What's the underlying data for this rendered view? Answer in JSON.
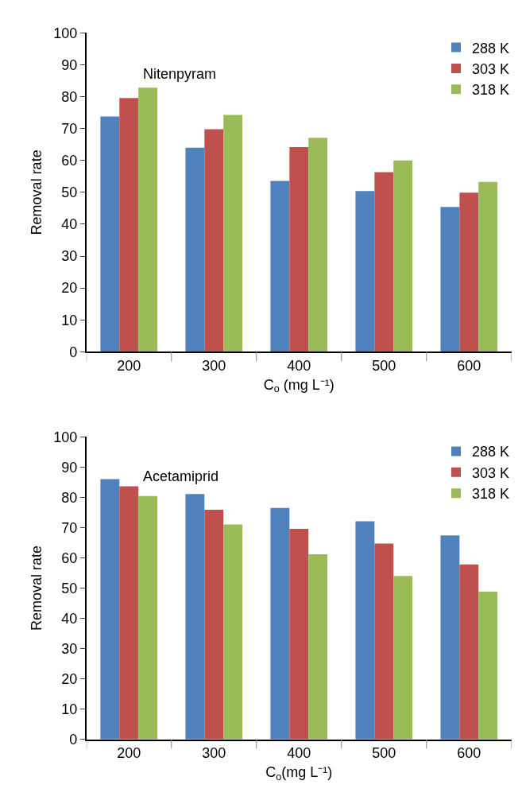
{
  "chart_data": [
    {
      "type": "bar",
      "categories": [
        "200",
        "300",
        "400",
        "500",
        "600"
      ],
      "xlabel": "C$_{o}$ (mg L⁻¹)",
      "ylabel": "Removal rate",
      "annotations": [
        "Nitenpyram"
      ],
      "ylim": [
        0,
        100
      ],
      "yticks": [
        0,
        10,
        20,
        30,
        40,
        50,
        60,
        70,
        80,
        90,
        100
      ],
      "grid": false,
      "legend": "top right",
      "series": [
        {
          "name": "288 K",
          "color": "#4f81bd",
          "values": [
            73.8,
            64,
            53.6,
            50.4,
            45.4
          ]
        },
        {
          "name": "303 K",
          "color": "#c0504d",
          "values": [
            79.6,
            69.8,
            64.2,
            56.3,
            49.9
          ]
        },
        {
          "name": "318 K",
          "color": "#9bbb59",
          "values": [
            82.8,
            74.3,
            67.1,
            60,
            53.3
          ]
        }
      ]
    },
    {
      "type": "bar",
      "categories": [
        "200",
        "300",
        "400",
        "500",
        "600"
      ],
      "xlabel": "C$_{o}$(mg L⁻¹)",
      "ylabel": "Removal rate",
      "annotations": [
        "Acetamiprid"
      ],
      "ylim": [
        0,
        100
      ],
      "yticks": [
        0,
        10,
        20,
        30,
        40,
        50,
        60,
        70,
        80,
        90,
        100
      ],
      "grid": false,
      "legend": "top right",
      "series": [
        {
          "name": "288 K",
          "color": "#4f81bd",
          "values": [
            86,
            81.1,
            76.5,
            72.1,
            67.4
          ]
        },
        {
          "name": "303 K",
          "color": "#c0504d",
          "values": [
            83.6,
            75.9,
            69.6,
            64.7,
            57.8
          ]
        },
        {
          "name": "318 K",
          "color": "#9bbb59",
          "values": [
            80.4,
            71,
            61.2,
            54,
            48.8
          ]
        }
      ]
    }
  ]
}
